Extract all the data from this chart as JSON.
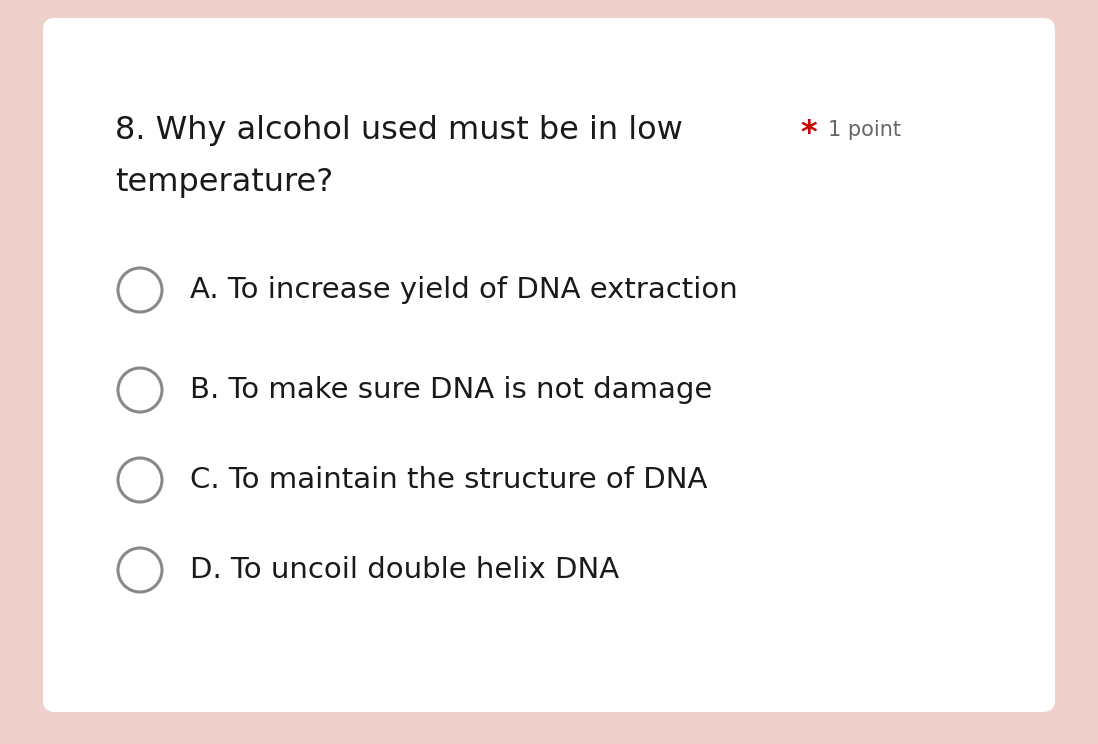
{
  "background_color": "#f0d0cb",
  "card_color": "#ffffff",
  "question_line1": "8. Why alcohol used must be in low",
  "question_line2": "temperature?",
  "points_star": "*",
  "points_text": "1 point",
  "star_color": "#cc0000",
  "points_color": "#666666",
  "options": [
    "A. To increase yield of DNA extraction",
    "B. To make sure DNA is not damage",
    "C. To maintain the structure of DNA",
    "D. To uncoil double helix DNA"
  ],
  "text_color": "#1a1a1a",
  "circle_edge_color": "#888888",
  "question_fontsize": 23,
  "option_fontsize": 21,
  "points_fontsize": 15
}
